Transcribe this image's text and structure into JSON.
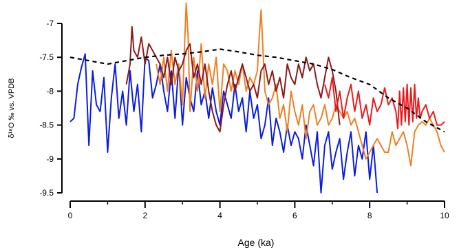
{
  "chart_data": {
    "type": "line",
    "title": "",
    "xlabel": "Age (ka)",
    "ylabel": "δ¹⁸O ‰ vs. VPDB",
    "xlim": [
      0,
      10
    ],
    "ylim": [
      -9.5,
      -7
    ],
    "y_inverted": false,
    "x_ticks": [
      "0",
      "2",
      "4",
      "6",
      "8",
      "10"
    ],
    "y_ticks": [
      "-7",
      "-7.5",
      "-8",
      "-8.5",
      "-9",
      "-9.5"
    ],
    "legend": "none",
    "grid": false,
    "series": [
      {
        "color": "#0b1de0",
        "x": [
          0.0,
          0.1,
          0.2,
          0.3,
          0.4,
          0.5,
          0.6,
          0.7,
          0.8,
          0.9,
          1.0,
          1.1,
          1.2,
          1.3,
          1.4,
          1.5,
          1.6,
          1.7,
          1.8,
          1.9,
          2.0,
          2.1,
          2.2,
          2.3,
          2.4,
          2.5,
          2.6,
          2.7,
          2.8,
          2.9,
          3.0,
          3.1,
          3.2,
          3.3,
          3.4,
          3.5,
          3.6,
          3.7,
          3.8,
          3.9,
          4.0,
          4.1,
          4.2,
          4.3,
          4.4,
          4.5,
          4.6,
          4.7,
          4.8,
          4.9,
          5.0,
          5.1,
          5.2,
          5.3,
          5.4,
          5.5,
          5.6,
          5.7,
          5.8,
          5.9,
          6.0,
          6.1,
          6.2,
          6.3,
          6.4,
          6.5,
          6.6,
          6.7,
          6.8,
          6.9,
          7.0,
          7.1,
          7.2,
          7.3,
          7.4,
          7.5,
          7.6,
          7.7,
          7.8,
          7.9,
          8.0,
          8.1,
          8.2
        ],
        "y": [
          -8.45,
          -8.4,
          -7.9,
          -7.65,
          -7.45,
          -8.8,
          -7.7,
          -8.2,
          -8.3,
          -7.8,
          -8.9,
          -8.1,
          -7.6,
          -8.4,
          -8.0,
          -8.5,
          -7.7,
          -8.3,
          -7.9,
          -8.6,
          -7.5,
          -7.55,
          -8.1,
          -7.9,
          -7.6,
          -8.0,
          -8.3,
          -7.7,
          -8.4,
          -7.6,
          -8.5,
          -7.8,
          -8.1,
          -8.3,
          -7.7,
          -8.2,
          -8.0,
          -8.4,
          -7.95,
          -8.3,
          -8.5,
          -8.0,
          -8.2,
          -8.4,
          -7.9,
          -8.3,
          -8.1,
          -8.6,
          -8.0,
          -8.4,
          -8.2,
          -8.7,
          -8.5,
          -8.1,
          -8.8,
          -8.4,
          -8.6,
          -8.9,
          -8.5,
          -8.8,
          -8.6,
          -8.7,
          -9.0,
          -8.5,
          -8.8,
          -9.1,
          -8.6,
          -9.5,
          -8.8,
          -8.6,
          -9.15,
          -8.9,
          -8.7,
          -9.3,
          -8.9,
          -8.6,
          -9.25,
          -8.8,
          -9.0,
          -8.6,
          -9.3,
          -8.8,
          -9.5
        ]
      },
      {
        "color": "#f07f24",
        "x": [
          2.3,
          2.4,
          2.5,
          2.6,
          2.7,
          2.8,
          2.9,
          3.0,
          3.05,
          3.1,
          3.15,
          3.2,
          3.3,
          3.4,
          3.5,
          3.6,
          3.7,
          3.8,
          3.9,
          4.0,
          4.1,
          4.2,
          4.3,
          4.4,
          4.5,
          4.6,
          4.7,
          4.8,
          4.9,
          5.0,
          5.05,
          5.1,
          5.15,
          5.2,
          5.3,
          5.4,
          5.5,
          5.6,
          5.7,
          5.8,
          5.9,
          6.0,
          6.1,
          6.2,
          6.3,
          6.4,
          6.5,
          6.6,
          6.7,
          6.8,
          6.9,
          7.0,
          7.1,
          7.2,
          7.3,
          7.4,
          7.5,
          7.6,
          7.7,
          7.8,
          7.9,
          8.0,
          8.1,
          8.2,
          8.3,
          8.4,
          8.5,
          8.6,
          8.7,
          8.8,
          8.9,
          9.0,
          9.1,
          9.2,
          9.3,
          9.4,
          9.5,
          9.6,
          9.7,
          9.8,
          9.9,
          10.0
        ],
        "y": [
          -7.6,
          -7.9,
          -7.5,
          -8.0,
          -7.4,
          -7.9,
          -7.6,
          -8.2,
          -7.4,
          -6.7,
          -7.2,
          -8.3,
          -7.5,
          -8.0,
          -7.3,
          -8.1,
          -7.6,
          -7.9,
          -7.5,
          -8.3,
          -7.6,
          -7.7,
          -8.0,
          -7.7,
          -7.9,
          -7.6,
          -8.0,
          -7.8,
          -7.9,
          -7.7,
          -7.2,
          -6.8,
          -7.4,
          -8.0,
          -8.2,
          -8.1,
          -7.9,
          -8.4,
          -8.2,
          -8.6,
          -8.0,
          -8.3,
          -8.5,
          -8.2,
          -8.7,
          -8.3,
          -8.2,
          -8.5,
          -8.4,
          -8.2,
          -8.5,
          -8.4,
          -8.2,
          -8.3,
          -8.4,
          -8.3,
          -8.5,
          -8.4,
          -8.6,
          -8.8,
          -9.0,
          -8.9,
          -8.8,
          -8.7,
          -8.8,
          -8.9,
          -8.9,
          -8.6,
          -8.8,
          -8.7,
          -8.6,
          -8.8,
          -9.1,
          -8.6,
          -8.5,
          -8.45,
          -8.5,
          -8.4,
          -8.5,
          -8.6,
          -8.8,
          -8.9
        ]
      },
      {
        "color": "#8b1a1a",
        "x": [
          1.5,
          1.6,
          1.65,
          1.7,
          1.8,
          1.9,
          2.0,
          2.1,
          2.2,
          2.3,
          2.4,
          2.5,
          2.6,
          2.7,
          2.8,
          2.9,
          3.0,
          3.1,
          3.2,
          3.3,
          3.4,
          3.5,
          3.6,
          3.7,
          3.8,
          3.9,
          4.0,
          4.1,
          4.2,
          4.3,
          4.4,
          4.5,
          4.6,
          4.7,
          4.8,
          4.9,
          5.0,
          5.1,
          5.2,
          5.3,
          5.4,
          5.5,
          5.6,
          5.7,
          5.8,
          5.9,
          6.0,
          6.1,
          6.2,
          6.3,
          6.4,
          6.5,
          6.6,
          6.7,
          6.8,
          6.9,
          7.0,
          7.1,
          7.2
        ],
        "y": [
          -7.9,
          -7.6,
          -7.05,
          -7.4,
          -7.5,
          -7.2,
          -7.6,
          -7.3,
          -7.4,
          -7.5,
          -7.6,
          -7.8,
          -7.5,
          -7.9,
          -7.5,
          -7.7,
          -7.6,
          -7.4,
          -7.3,
          -7.8,
          -7.6,
          -7.9,
          -7.6,
          -8.0,
          -8.3,
          -8.5,
          -8.6,
          -8.2,
          -7.9,
          -7.7,
          -8.0,
          -7.8,
          -7.6,
          -7.8,
          -8.0,
          -7.9,
          -8.1,
          -7.7,
          -7.6,
          -7.9,
          -7.7,
          -8.0,
          -7.8,
          -8.1,
          -7.6,
          -7.8,
          -7.9,
          -7.6,
          -7.8,
          -7.5,
          -7.7,
          -7.6,
          -7.9,
          -8.1,
          -7.8,
          -7.5,
          -7.7,
          -8.0,
          -8.5
        ]
      },
      {
        "color": "#ec1b1b",
        "x": [
          6.8,
          6.9,
          7.0,
          7.1,
          7.2,
          7.3,
          7.4,
          7.5,
          7.6,
          7.7,
          7.8,
          7.9,
          8.0,
          8.1,
          8.2,
          8.3,
          8.4,
          8.5,
          8.6,
          8.7,
          8.75,
          8.8,
          8.85,
          8.9,
          8.95,
          9.0,
          9.05,
          9.1,
          9.15,
          9.2,
          9.25,
          9.3,
          9.35,
          9.4,
          9.5,
          9.6,
          9.7,
          9.8,
          9.9,
          10.0
        ],
        "y": [
          -7.9,
          -8.1,
          -7.8,
          -8.3,
          -8.0,
          -8.4,
          -8.1,
          -7.9,
          -8.3,
          -8.0,
          -8.4,
          -8.2,
          -8.5,
          -8.1,
          -8.3,
          -8.2,
          -7.95,
          -8.2,
          -8.1,
          -8.3,
          -8.55,
          -8.0,
          -8.5,
          -7.95,
          -8.45,
          -7.9,
          -8.5,
          -7.95,
          -8.45,
          -7.9,
          -8.4,
          -8.1,
          -8.4,
          -8.3,
          -8.2,
          -8.4,
          -8.3,
          -8.5,
          -8.5,
          -8.45
        ]
      },
      {
        "color": "#000000",
        "dashed": true,
        "x": [
          0,
          0.5,
          1.0,
          1.5,
          2.0,
          2.5,
          3.0,
          3.5,
          4.0,
          4.5,
          5.0,
          5.5,
          6.0,
          6.5,
          7.0,
          7.5,
          8.0,
          8.5,
          9.0,
          9.5,
          10.0
        ],
        "y": [
          -7.5,
          -7.55,
          -7.6,
          -7.55,
          -7.5,
          -7.47,
          -7.45,
          -7.42,
          -7.38,
          -7.42,
          -7.47,
          -7.5,
          -7.55,
          -7.6,
          -7.68,
          -7.8,
          -7.9,
          -8.1,
          -8.25,
          -8.45,
          -8.6
        ]
      }
    ]
  }
}
